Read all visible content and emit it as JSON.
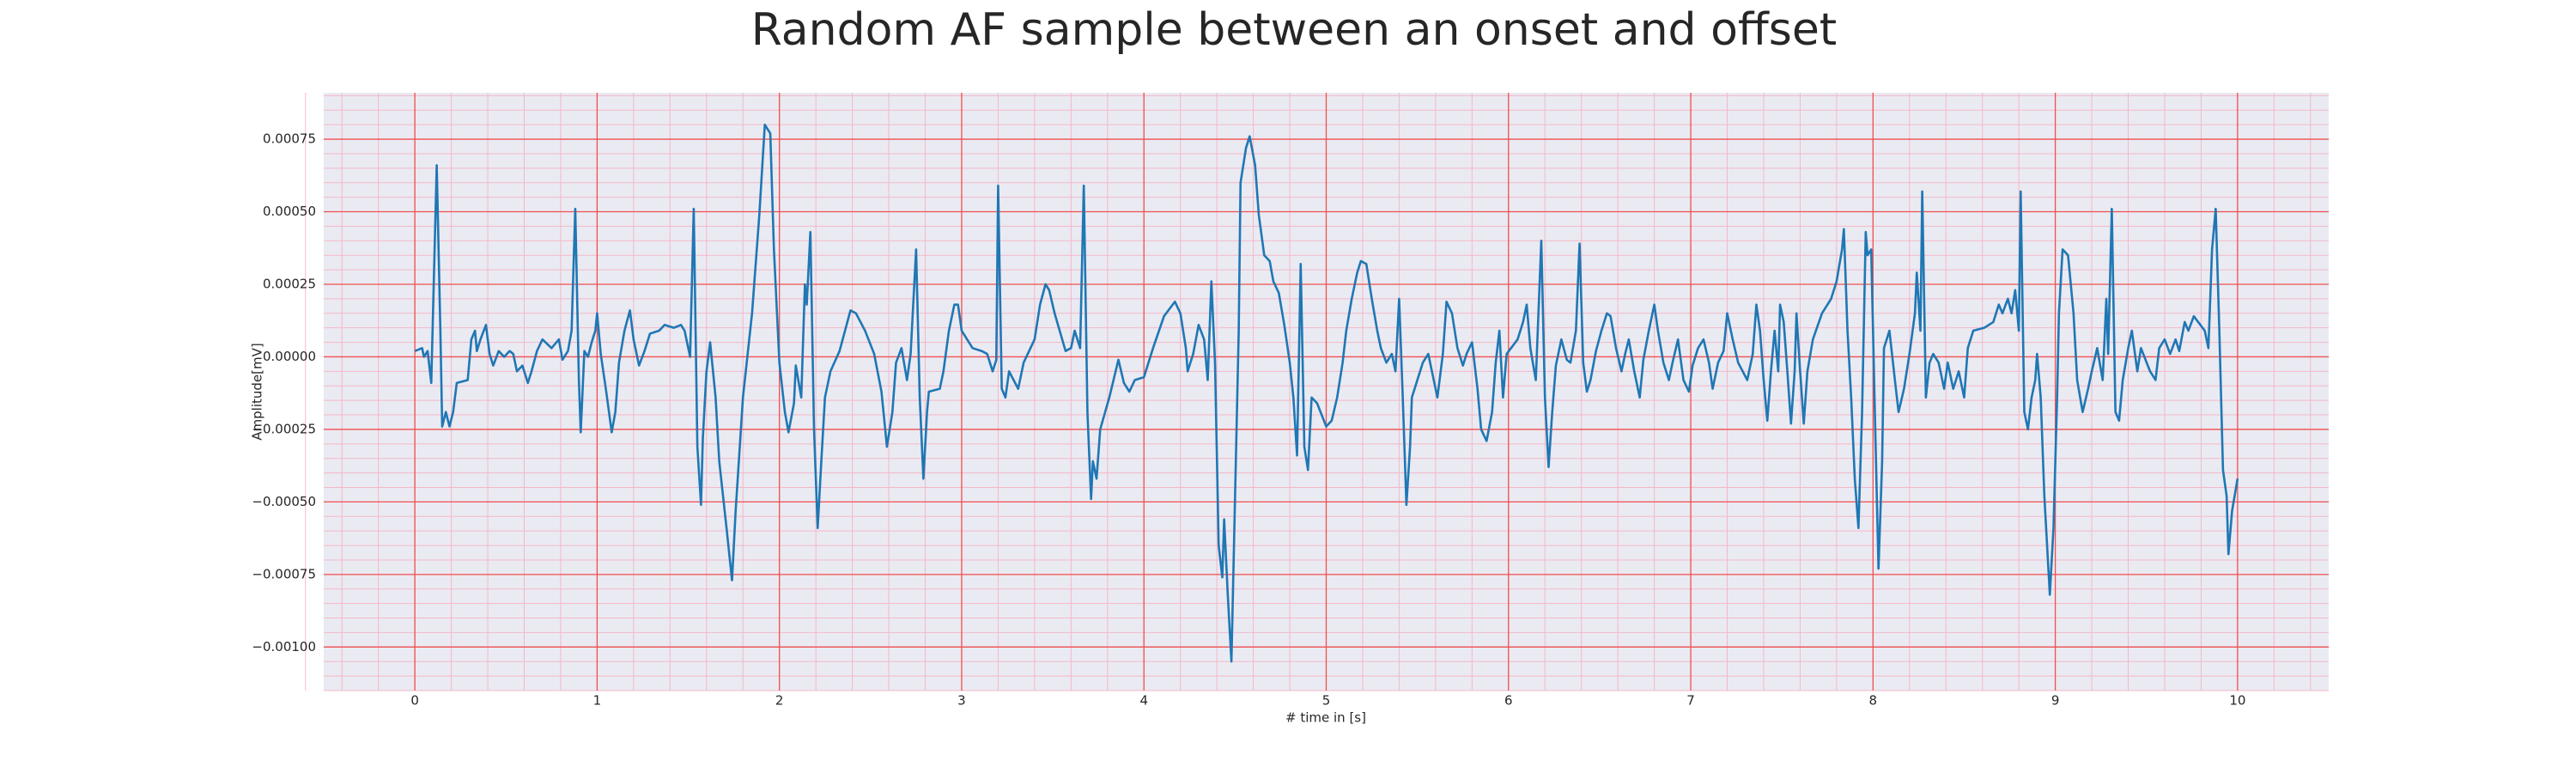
{
  "chart_data": {
    "type": "line",
    "title": "Random AF sample between an onset and offset",
    "xlabel": "# time in [s]",
    "ylabel": "Amplitude[mV]",
    "color": "#1f77b4",
    "background": "#eaeaf2",
    "grid": true,
    "grid_color": "#f05050",
    "minor_grid": true,
    "minor_grid_color": "#f4b8c8",
    "xlim": [
      -0.5,
      10.5
    ],
    "ylim": [
      -0.00115,
      0.00091
    ],
    "xticks": [
      0,
      1,
      2,
      3,
      4,
      5,
      6,
      7,
      8,
      9,
      10
    ],
    "yticks": [
      {
        "value": -0.001,
        "label": "−0.00100"
      },
      {
        "value": -0.00075,
        "label": "−0.00075"
      },
      {
        "value": -0.0005,
        "label": "−0.00050"
      },
      {
        "value": -0.00025,
        "label": "−0.00025"
      },
      {
        "value": 0,
        "label": "0.00000"
      },
      {
        "value": 0.00025,
        "label": "0.00025"
      },
      {
        "value": 0.0005,
        "label": "0.00050"
      },
      {
        "value": 0.00075,
        "label": "0.00075"
      }
    ],
    "x": [
      0,
      0.04,
      0.05,
      0.07,
      0.09,
      0.12,
      0.14,
      0.15,
      0.17,
      0.19,
      0.21,
      0.23,
      0.29,
      0.31,
      0.33,
      0.34,
      0.36,
      0.39,
      0.41,
      0.43,
      0.46,
      0.49,
      0.52,
      0.54,
      0.56,
      0.59,
      0.62,
      0.64,
      0.67,
      0.7,
      0.75,
      0.79,
      0.81,
      0.84,
      0.86,
      0.88,
      0.9,
      0.91,
      0.93,
      0.95,
      0.97,
      0.99,
      1.0,
      1.02,
      1.05,
      1.08,
      1.1,
      1.12,
      1.15,
      1.18,
      1.2,
      1.23,
      1.26,
      1.29,
      1.34,
      1.37,
      1.42,
      1.46,
      1.48,
      1.51,
      1.53,
      1.55,
      1.57,
      1.58,
      1.6,
      1.62,
      1.65,
      1.67,
      1.71,
      1.74,
      1.76,
      1.8,
      1.85,
      1.89,
      1.92,
      1.95,
      1.97,
      2.0,
      2.03,
      2.05,
      2.08,
      2.09,
      2.12,
      2.14,
      2.15,
      2.17,
      2.19,
      2.21,
      2.23,
      2.25,
      2.28,
      2.33,
      2.36,
      2.39,
      2.42,
      2.47,
      2.52,
      2.56,
      2.59,
      2.62,
      2.64,
      2.67,
      2.7,
      2.72,
      2.75,
      2.77,
      2.79,
      2.81,
      2.82,
      2.88,
      2.9,
      2.93,
      2.96,
      2.98,
      3.0,
      3.06,
      3.11,
      3.14,
      3.17,
      3.19,
      3.2,
      3.22,
      3.24,
      3.26,
      3.31,
      3.34,
      3.4,
      3.43,
      3.46,
      3.48,
      3.51,
      3.57,
      3.6,
      3.62,
      3.65,
      3.67,
      3.69,
      3.71,
      3.72,
      3.74,
      3.76,
      3.81,
      3.86,
      3.89,
      3.92,
      3.95,
      4.0,
      4.05,
      4.11,
      4.17,
      4.2,
      4.23,
      4.24,
      4.27,
      4.3,
      4.33,
      4.35,
      4.37,
      4.39,
      4.41,
      4.43,
      4.44,
      4.46,
      4.48,
      4.5,
      4.52,
      4.53,
      4.56,
      4.58,
      4.61,
      4.63,
      4.66,
      4.69,
      4.71,
      4.74,
      4.77,
      4.8,
      4.82,
      4.84,
      4.86,
      4.88,
      4.9,
      4.92,
      4.95,
      5.0,
      5.03,
      5.06,
      5.09,
      5.11,
      5.14,
      5.17,
      5.19,
      5.22,
      5.25,
      5.28,
      5.3,
      5.33,
      5.36,
      5.38,
      5.4,
      5.42,
      5.44,
      5.46,
      5.47,
      5.53,
      5.56,
      5.58,
      5.61,
      5.64,
      5.66,
      5.69,
      5.72,
      5.75,
      5.77,
      5.8,
      5.83,
      5.85,
      5.88,
      5.91,
      5.93,
      5.95,
      5.97,
      5.99,
      6.05,
      6.08,
      6.1,
      6.12,
      6.15,
      6.18,
      6.2,
      6.22,
      6.24,
      6.26,
      6.29,
      6.32,
      6.34,
      6.37,
      6.39,
      6.41,
      6.43,
      6.45,
      6.48,
      6.51,
      6.54,
      6.56,
      6.59,
      6.62,
      6.64,
      6.66,
      6.69,
      6.72,
      6.74,
      6.77,
      6.8,
      6.82,
      6.85,
      6.88,
      6.9,
      6.93,
      6.96,
      6.99,
      7.01,
      7.04,
      7.07,
      7.1,
      7.12,
      7.15,
      7.18,
      7.2,
      7.23,
      7.26,
      7.31,
      7.34,
      7.36,
      7.38,
      7.4,
      7.42,
      7.44,
      7.46,
      7.48,
      7.49,
      7.51,
      7.53,
      7.55,
      7.57,
      7.58,
      7.6,
      7.62,
      7.64,
      7.67,
      7.72,
      7.77,
      7.8,
      7.83,
      7.84,
      7.86,
      7.88,
      7.9,
      7.92,
      7.94,
      7.96,
      7.97,
      7.99,
      8.01,
      8.03,
      8.05,
      8.06,
      8.09,
      8.12,
      8.14,
      8.17,
      8.2,
      8.23,
      8.24,
      8.26,
      8.27,
      8.29,
      8.31,
      8.33,
      8.36,
      8.39,
      8.41,
      8.44,
      8.47,
      8.5,
      8.52,
      8.55,
      8.61,
      8.66,
      8.69,
      8.71,
      8.74,
      8.76,
      8.78,
      8.8,
      8.81,
      8.83,
      8.85,
      8.87,
      8.89,
      8.9,
      8.92,
      8.94,
      8.97,
      8.99,
      9.01,
      9.02,
      9.04,
      9.07,
      9.1,
      9.12,
      9.15,
      9.18,
      9.2,
      9.23,
      9.26,
      9.28,
      9.29,
      9.31,
      9.33,
      9.35,
      9.37,
      9.4,
      9.42,
      9.45,
      9.47,
      9.52,
      9.55,
      9.57,
      9.6,
      9.63,
      9.66,
      9.68,
      9.71,
      9.73,
      9.76,
      9.82,
      9.84,
      9.86,
      9.88,
      9.9,
      9.92,
      9.94,
      9.95,
      9.97,
      10.0
    ],
    "values": [
      2e-05,
      3e-05,
      0,
      2e-05,
      -9e-05,
      0.00066,
      9e-05,
      -0.00024,
      -0.00019,
      -0.00024,
      -0.00019,
      -9e-05,
      -8e-05,
      6e-05,
      9e-05,
      2e-05,
      6e-05,
      0.00011,
      1e-05,
      -3e-05,
      2e-05,
      0,
      2e-05,
      1e-05,
      -5e-05,
      -3e-05,
      -9e-05,
      -5e-05,
      2e-05,
      6e-05,
      3e-05,
      6e-05,
      -1e-05,
      2e-05,
      9e-05,
      0.00051,
      -8e-05,
      -0.00026,
      2e-05,
      0,
      5e-05,
      9e-05,
      0.00015,
      1e-05,
      -0.00012,
      -0.00026,
      -0.00019,
      -2e-05,
      9e-05,
      0.00016,
      6e-05,
      -3e-05,
      2e-05,
      8e-05,
      9e-05,
      0.00011,
      0.0001,
      0.00011,
      9e-05,
      0,
      0.00051,
      -0.00031,
      -0.00051,
      -0.00028,
      -5e-05,
      5e-05,
      -0.00014,
      -0.00036,
      -0.00059,
      -0.00077,
      -0.00053,
      -0.00014,
      0.00015,
      0.00049,
      0.0008,
      0.00077,
      0.00037,
      -2e-05,
      -0.00019,
      -0.00026,
      -0.00016,
      -3e-05,
      -0.00014,
      0.00025,
      0.00018,
      0.00043,
      -0.00025,
      -0.00059,
      -0.00036,
      -0.00014,
      -5e-05,
      2e-05,
      9e-05,
      0.00016,
      0.00015,
      9e-05,
      1e-05,
      -0.00012,
      -0.00031,
      -0.00019,
      -2e-05,
      3e-05,
      -8e-05,
      1e-05,
      0.00037,
      -0.00014,
      -0.00042,
      -0.00019,
      -0.00012,
      -0.00011,
      -5e-05,
      9e-05,
      0.00018,
      0.00018,
      9e-05,
      3e-05,
      2e-05,
      1e-05,
      -5e-05,
      -1e-05,
      0.00059,
      -0.00011,
      -0.00014,
      -5e-05,
      -0.00011,
      -2e-05,
      6e-05,
      0.00018,
      0.00025,
      0.00023,
      0.00015,
      2e-05,
      3e-05,
      9e-05,
      3e-05,
      0.00059,
      -0.00019,
      -0.00049,
      -0.00036,
      -0.00042,
      -0.00025,
      -0.00014,
      -1e-05,
      -9e-05,
      -0.00012,
      -8e-05,
      -7e-05,
      3e-05,
      0.00014,
      0.00019,
      0.00015,
      3e-05,
      -5e-05,
      1e-05,
      0.00011,
      6e-05,
      -8e-05,
      0.00026,
      -2e-05,
      -0.00065,
      -0.00076,
      -0.00056,
      -0.00082,
      -0.00105,
      -0.00048,
      9e-05,
      0.0006,
      0.00072,
      0.00076,
      0.00066,
      0.00049,
      0.00035,
      0.00033,
      0.00026,
      0.00022,
      0.00011,
      -2e-05,
      -0.00014,
      -0.00034,
      0.00032,
      -0.00031,
      -0.00039,
      -0.00014,
      -0.00016,
      -0.00024,
      -0.00022,
      -0.00014,
      -2e-05,
      9e-05,
      0.0002,
      0.00029,
      0.00033,
      0.00032,
      0.0002,
      9e-05,
      3e-05,
      -2e-05,
      1e-05,
      -5e-05,
      0.0002,
      -0.00014,
      -0.00051,
      -0.00031,
      -0.00014,
      -2e-05,
      1e-05,
      -5e-05,
      -0.00014,
      1e-05,
      0.00019,
      0.00015,
      3e-05,
      -3e-05,
      1e-05,
      5e-05,
      -0.00011,
      -0.00025,
      -0.00029,
      -0.00019,
      -2e-05,
      9e-05,
      -0.00014,
      1e-05,
      6e-05,
      0.00012,
      0.00018,
      3e-05,
      -8e-05,
      0.0004,
      -0.00014,
      -0.00038,
      -0.00019,
      -3e-05,
      6e-05,
      -1e-05,
      -2e-05,
      9e-05,
      0.00039,
      -2e-05,
      -0.00012,
      -8e-05,
      2e-05,
      9e-05,
      0.00015,
      0.00014,
      3e-05,
      -5e-05,
      1e-05,
      6e-05,
      -5e-05,
      -0.00014,
      -1e-05,
      9e-05,
      0.00018,
      9e-05,
      -2e-05,
      -8e-05,
      -2e-05,
      6e-05,
      -8e-05,
      -0.00012,
      -3e-05,
      3e-05,
      6e-05,
      -2e-05,
      -0.00011,
      -2e-05,
      2e-05,
      0.00015,
      6e-05,
      -2e-05,
      -8e-05,
      1e-05,
      0.00018,
      9e-05,
      -8e-05,
      -0.00022,
      -5e-05,
      9e-05,
      -5e-05,
      0.00018,
      0.00012,
      -5e-05,
      -0.00023,
      -5e-05,
      0.00015,
      -5e-05,
      -0.00023,
      -5e-05,
      6e-05,
      0.00015,
      0.0002,
      0.00026,
      0.00037,
      0.00044,
      9e-05,
      -0.00014,
      -0.00042,
      -0.00059,
      -0.00019,
      0.00043,
      0.00035,
      0.00037,
      -0.00019,
      -0.00073,
      -0.00036,
      3e-05,
      9e-05,
      -8e-05,
      -0.00019,
      -0.00011,
      1e-05,
      0.00015,
      0.00029,
      9e-05,
      0.00057,
      -0.00014,
      -2e-05,
      1e-05,
      -2e-05,
      -0.00011,
      -2e-05,
      -0.00011,
      -5e-05,
      -0.00014,
      3e-05,
      9e-05,
      0.0001,
      0.00012,
      0.00018,
      0.00015,
      0.0002,
      0.00015,
      0.00023,
      9e-05,
      0.00057,
      -0.00019,
      -0.00025,
      -0.00014,
      -8e-05,
      1e-05,
      -0.00014,
      -0.00048,
      -0.00082,
      -0.00059,
      -0.00014,
      0.00015,
      0.00037,
      0.00035,
      0.00015,
      -8e-05,
      -0.00019,
      -0.00011,
      -5e-05,
      3e-05,
      -8e-05,
      0.0002,
      1e-05,
      0.00051,
      -0.00019,
      -0.00022,
      -8e-05,
      3e-05,
      9e-05,
      -5e-05,
      3e-05,
      -5e-05,
      -8e-05,
      3e-05,
      6e-05,
      1e-05,
      6e-05,
      2e-05,
      0.00012,
      9e-05,
      0.00014,
      9e-05,
      3e-05,
      0.00037,
      0.00051,
      9e-05,
      -0.00039,
      -0.00048,
      -0.00068,
      -0.00053,
      -0.00042
    ]
  }
}
